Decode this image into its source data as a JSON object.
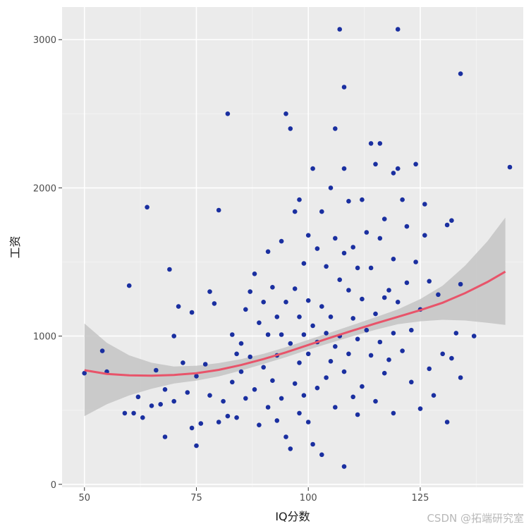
{
  "chart_data": {
    "type": "scatter",
    "xlabel": "IQ分数",
    "ylabel": "工资",
    "xlim": [
      45,
      148
    ],
    "ylim": [
      -20,
      3220
    ],
    "xticks": [
      50,
      75,
      100,
      125
    ],
    "yticks": [
      0,
      1000,
      2000,
      3000
    ],
    "grid": true,
    "colors": {
      "panel": "#ebebeb",
      "grid_major": "#ffffff",
      "points": "#1a2fa0",
      "smooth_line": "#e8546a",
      "confidence_band": "#c4c4c4"
    },
    "series": [
      {
        "kind": "points",
        "points": [
          [
            50,
            750
          ],
          [
            54,
            900
          ],
          [
            55,
            760
          ],
          [
            59,
            480
          ],
          [
            60,
            1340
          ],
          [
            61,
            480
          ],
          [
            62,
            590
          ],
          [
            63,
            450
          ],
          [
            64,
            1870
          ],
          [
            65,
            530
          ],
          [
            66,
            770
          ],
          [
            67,
            540
          ],
          [
            68,
            640
          ],
          [
            68,
            320
          ],
          [
            69,
            1450
          ],
          [
            70,
            1000
          ],
          [
            70,
            560
          ],
          [
            71,
            1200
          ],
          [
            72,
            820
          ],
          [
            73,
            620
          ],
          [
            74,
            1160
          ],
          [
            74,
            380
          ],
          [
            75,
            260
          ],
          [
            75,
            730
          ],
          [
            76,
            410
          ],
          [
            77,
            810
          ],
          [
            78,
            600
          ],
          [
            78,
            1300
          ],
          [
            79,
            1220
          ],
          [
            80,
            1850
          ],
          [
            80,
            420
          ],
          [
            81,
            560
          ],
          [
            82,
            2500
          ],
          [
            82,
            460
          ],
          [
            83,
            1010
          ],
          [
            83,
            690
          ],
          [
            84,
            880
          ],
          [
            84,
            450
          ],
          [
            85,
            950
          ],
          [
            85,
            760
          ],
          [
            86,
            1180
          ],
          [
            86,
            580
          ],
          [
            87,
            1300
          ],
          [
            87,
            860
          ],
          [
            88,
            1420
          ],
          [
            88,
            640
          ],
          [
            89,
            1090
          ],
          [
            89,
            400
          ],
          [
            90,
            1230
          ],
          [
            90,
            790
          ],
          [
            91,
            1570
          ],
          [
            91,
            1010
          ],
          [
            91,
            520
          ],
          [
            92,
            1330
          ],
          [
            92,
            700
          ],
          [
            93,
            1130
          ],
          [
            93,
            870
          ],
          [
            93,
            430
          ],
          [
            94,
            1640
          ],
          [
            94,
            1010
          ],
          [
            94,
            580
          ],
          [
            95,
            2500
          ],
          [
            95,
            1230
          ],
          [
            95,
            320
          ],
          [
            96,
            2400
          ],
          [
            96,
            950
          ],
          [
            96,
            240
          ],
          [
            97,
            1840
          ],
          [
            97,
            1320
          ],
          [
            97,
            680
          ],
          [
            98,
            1920
          ],
          [
            98,
            1130
          ],
          [
            98,
            820
          ],
          [
            98,
            480
          ],
          [
            99,
            1490
          ],
          [
            99,
            1010
          ],
          [
            99,
            600
          ],
          [
            100,
            1680
          ],
          [
            100,
            1240
          ],
          [
            100,
            880
          ],
          [
            100,
            420
          ],
          [
            101,
            2130
          ],
          [
            101,
            1070
          ],
          [
            101,
            270
          ],
          [
            102,
            1590
          ],
          [
            102,
            960
          ],
          [
            102,
            650
          ],
          [
            103,
            1840
          ],
          [
            103,
            1200
          ],
          [
            103,
            200
          ],
          [
            104,
            1470
          ],
          [
            104,
            1020
          ],
          [
            104,
            720
          ],
          [
            105,
            2000
          ],
          [
            105,
            1130
          ],
          [
            105,
            830
          ],
          [
            106,
            2400
          ],
          [
            106,
            1660
          ],
          [
            106,
            930
          ],
          [
            106,
            520
          ],
          [
            107,
            3070
          ],
          [
            107,
            1380
          ],
          [
            107,
            1000
          ],
          [
            108,
            2680
          ],
          [
            108,
            2130
          ],
          [
            108,
            1560
          ],
          [
            108,
            760
          ],
          [
            108,
            120
          ],
          [
            109,
            1910
          ],
          [
            109,
            1310
          ],
          [
            109,
            880
          ],
          [
            110,
            1600
          ],
          [
            110,
            1120
          ],
          [
            110,
            590
          ],
          [
            111,
            1460
          ],
          [
            111,
            980
          ],
          [
            111,
            470
          ],
          [
            112,
            1920
          ],
          [
            112,
            1250
          ],
          [
            112,
            660
          ],
          [
            113,
            1700
          ],
          [
            113,
            1040
          ],
          [
            114,
            2300
          ],
          [
            114,
            1460
          ],
          [
            114,
            870
          ],
          [
            115,
            2160
          ],
          [
            115,
            1150
          ],
          [
            115,
            560
          ],
          [
            116,
            2300
          ],
          [
            116,
            1660
          ],
          [
            116,
            960
          ],
          [
            117,
            1790
          ],
          [
            117,
            1260
          ],
          [
            117,
            750
          ],
          [
            118,
            1310
          ],
          [
            118,
            840
          ],
          [
            119,
            2100
          ],
          [
            119,
            1520
          ],
          [
            119,
            1020
          ],
          [
            119,
            480
          ],
          [
            120,
            3070
          ],
          [
            120,
            2130
          ],
          [
            120,
            1230
          ],
          [
            121,
            1920
          ],
          [
            121,
            900
          ],
          [
            122,
            1740
          ],
          [
            122,
            1360
          ],
          [
            123,
            1040
          ],
          [
            123,
            690
          ],
          [
            124,
            2160
          ],
          [
            124,
            1500
          ],
          [
            125,
            1180
          ],
          [
            125,
            510
          ],
          [
            126,
            1890
          ],
          [
            126,
            1680
          ],
          [
            127,
            1370
          ],
          [
            127,
            780
          ],
          [
            128,
            600
          ],
          [
            129,
            1280
          ],
          [
            130,
            880
          ],
          [
            131,
            1750
          ],
          [
            131,
            420
          ],
          [
            132,
            1780
          ],
          [
            132,
            850
          ],
          [
            133,
            1020
          ],
          [
            134,
            2770
          ],
          [
            134,
            1350
          ],
          [
            134,
            720
          ],
          [
            137,
            1000
          ],
          [
            145,
            2140
          ]
        ]
      },
      {
        "kind": "smooth",
        "x": [
          50,
          55,
          60,
          65,
          70,
          75,
          80,
          85,
          90,
          95,
          100,
          105,
          110,
          115,
          120,
          125,
          130,
          135,
          140,
          144
        ],
        "y": [
          770,
          745,
          735,
          733,
          738,
          750,
          772,
          805,
          845,
          890,
          940,
          990,
          1038,
          1085,
          1130,
          1175,
          1225,
          1290,
          1365,
          1435
        ],
        "lower": [
          460,
          540,
          600,
          645,
          680,
          700,
          728,
          768,
          812,
          858,
          908,
          955,
          1000,
          1043,
          1080,
          1100,
          1110,
          1105,
          1090,
          1075
        ],
        "upper": [
          1085,
          955,
          870,
          820,
          795,
          800,
          818,
          845,
          880,
          925,
          975,
          1025,
          1075,
          1127,
          1180,
          1250,
          1340,
          1475,
          1640,
          1800
        ]
      }
    ]
  },
  "watermark": "CSDN @拓端研究室"
}
